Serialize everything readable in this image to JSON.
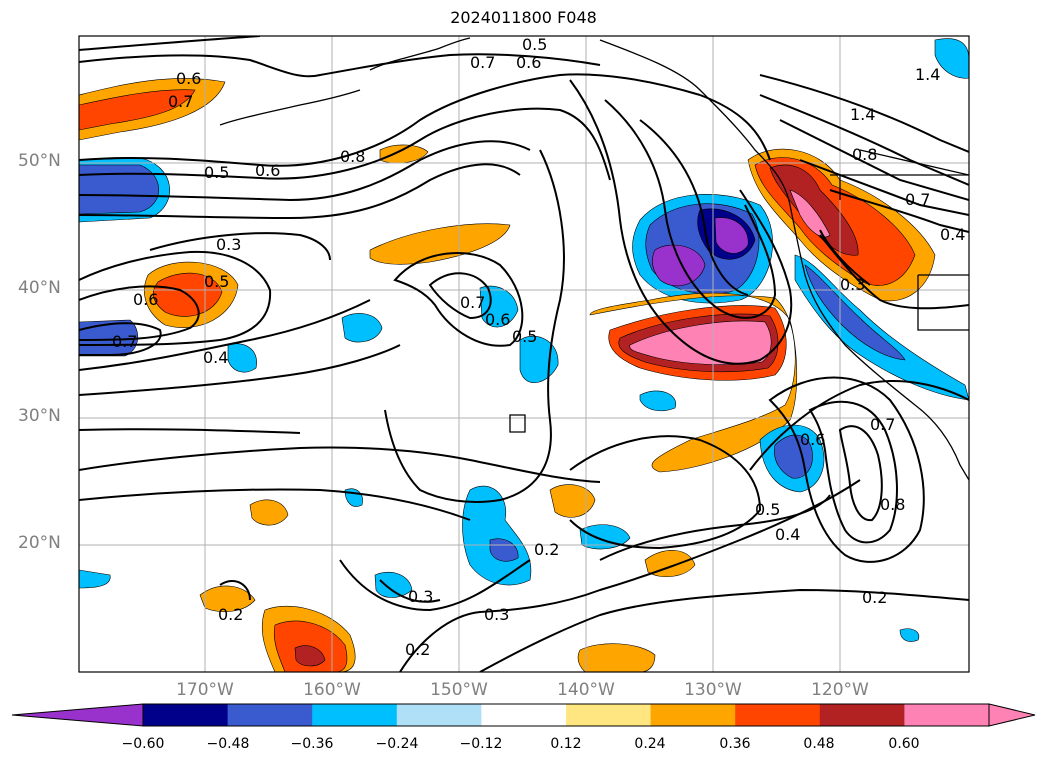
{
  "title": "2024011800 F048",
  "latitude_labels": [
    "50°N",
    "40°N",
    "30°N",
    "20°N"
  ],
  "longitude_labels": [
    "170°W",
    "160°W",
    "150°W",
    "140°W",
    "130°W",
    "120°W"
  ],
  "colorbar": {
    "ticks": [
      "−0.60",
      "−0.48",
      "−0.36",
      "−0.24",
      "−0.12",
      "0.12",
      "0.24",
      "0.36",
      "0.48",
      "0.60"
    ],
    "colors": [
      "#9932cc",
      "#00008b",
      "#3a5bcf",
      "#00bfff",
      "#b0e0f8",
      "#ffffff",
      "#ffe680",
      "#ffa500",
      "#ff4500",
      "#b22222",
      "#ff82b4",
      "#ff82b4"
    ]
  },
  "contour_labels": [
    "0.5",
    "0.7",
    "0.6",
    "0.6",
    "0.7",
    "0.8",
    "0.5",
    "0.6",
    "0.3",
    "0.5",
    "0.6",
    "0.7",
    "0.4",
    "0.7",
    "0.6",
    "0.5",
    "1.4",
    "1.4",
    "0.8",
    "0.7",
    "0.4",
    "0.3",
    "0.6",
    "0.7",
    "0.8",
    "0.5",
    "0.4",
    "0.2",
    "0.2",
    "0.3",
    "0.3",
    "0.2",
    "0.2"
  ]
}
